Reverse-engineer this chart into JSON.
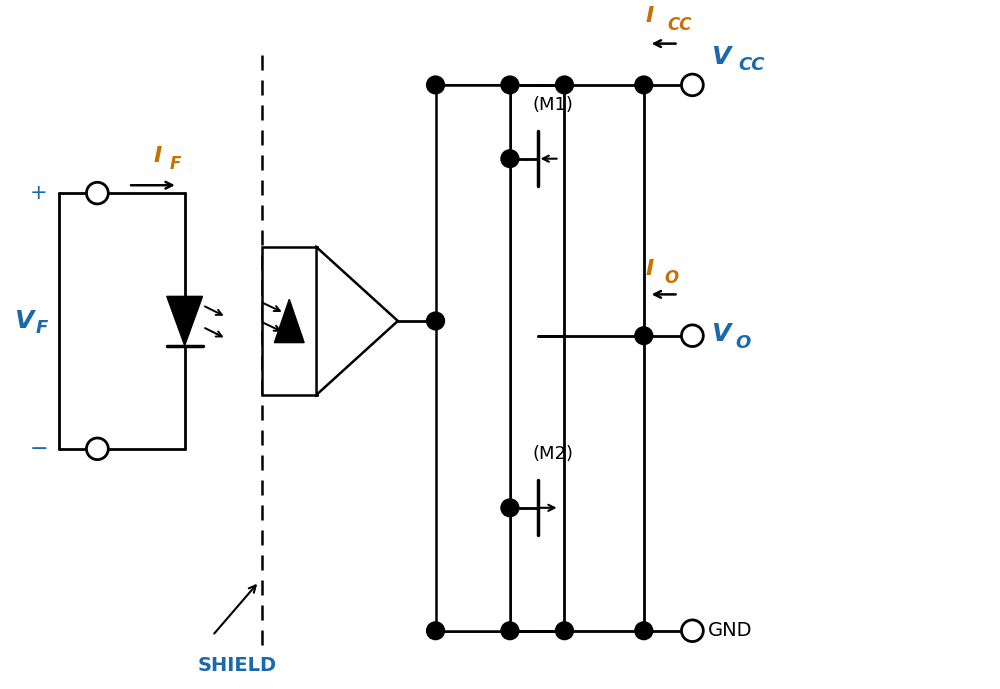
{
  "bg_color": "#ffffff",
  "lc": "#000000",
  "blue": "#1a6aab",
  "orange": "#c87000",
  "figsize": [
    10.0,
    6.89
  ],
  "dpi": 100,
  "xlim": [
    0,
    10
  ],
  "ylim": [
    0,
    6.89
  ]
}
